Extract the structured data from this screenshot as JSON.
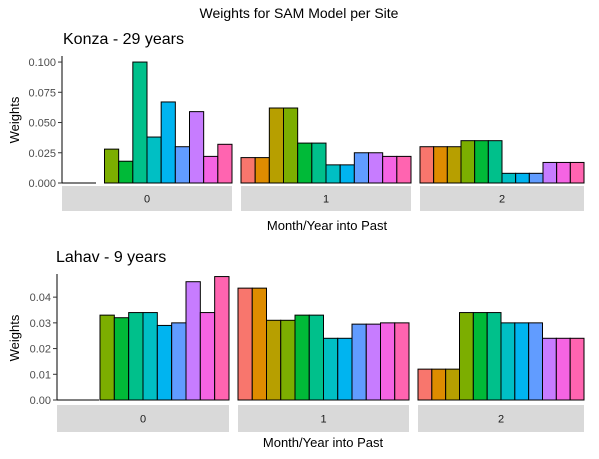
{
  "figure_title": "Weights for SAM Model per Site",
  "chart_data": [
    {
      "type": "bar",
      "title": "Konza - 29 years",
      "xlabel": "Month/Year into Past",
      "ylabel": "Weights",
      "ylim": [
        0,
        0.105
      ],
      "yticks": [
        "0.000",
        "0.025",
        "0.050",
        "0.075",
        "0.100"
      ],
      "ytick_values": [
        0,
        0.025,
        0.05,
        0.075,
        0.1
      ],
      "grid": false,
      "legend": "none",
      "facets": [
        {
          "label": "0",
          "values": [
            0,
            0,
            0,
            0.028,
            0.018,
            0.1,
            0.038,
            0.067,
            0.03,
            0.059,
            0.022,
            0.032
          ]
        },
        {
          "label": "1",
          "values": [
            0.021,
            0.021,
            0.062,
            0.062,
            0.033,
            0.033,
            0.015,
            0.015,
            0.025,
            0.025,
            0.022,
            0.022
          ]
        },
        {
          "label": "2",
          "values": [
            0.03,
            0.03,
            0.03,
            0.035,
            0.035,
            0.035,
            0.008,
            0.008,
            0.008,
            0.017,
            0.017,
            0.017
          ]
        }
      ]
    },
    {
      "type": "bar",
      "title": "Lahav - 9 years",
      "xlabel": "Month/Year into Past",
      "ylabel": "Weights",
      "ylim": [
        0,
        0.049
      ],
      "yticks": [
        "0.00",
        "0.01",
        "0.02",
        "0.03",
        "0.04"
      ],
      "ytick_values": [
        0,
        0.01,
        0.02,
        0.03,
        0.04
      ],
      "grid": false,
      "legend": "none",
      "facets": [
        {
          "label": "0",
          "values": [
            0,
            0,
            0,
            0.033,
            0.032,
            0.034,
            0.034,
            0.029,
            0.03,
            0.046,
            0.034,
            0.048
          ]
        },
        {
          "label": "1",
          "values": [
            0.0435,
            0.0435,
            0.031,
            0.031,
            0.033,
            0.033,
            0.024,
            0.024,
            0.0295,
            0.0295,
            0.03,
            0.03
          ]
        },
        {
          "label": "2",
          "values": [
            0.012,
            0.012,
            0.012,
            0.034,
            0.034,
            0.034,
            0.03,
            0.03,
            0.03,
            0.024,
            0.024,
            0.024
          ]
        }
      ]
    }
  ],
  "colors": {
    "bars": [
      "#F8766D",
      "#DE8C00",
      "#B79F00",
      "#7CAE00",
      "#00BA38",
      "#00C08B",
      "#00BFC4",
      "#00B4F0",
      "#619CFF",
      "#C77CFF",
      "#F564E3",
      "#FF64B0"
    ],
    "strip": "#d9d9d9",
    "axis": "#000000",
    "tick_text": "#4d4d4d"
  }
}
